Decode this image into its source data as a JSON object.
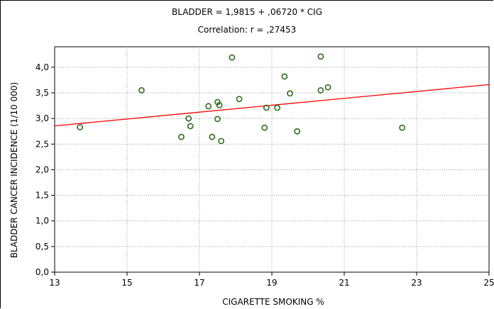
{
  "chart_data": {
    "type": "scatter",
    "title": "BLADDER = 1,9815 + ,06720 * CIG",
    "subtitle": "Correlation: r = ,27453",
    "xlabel": "CIGARETTE SMOKING %",
    "ylabel": "BLADDER CANCER INCIDENCE (1/10 000)",
    "xlim": [
      13,
      25
    ],
    "ylim": [
      0,
      4.4
    ],
    "x_ticks": [
      13,
      15,
      17,
      19,
      21,
      23,
      25
    ],
    "x_tick_labels": [
      "13",
      "15",
      "17",
      "19",
      "21",
      "23",
      "25"
    ],
    "y_ticks": [
      0,
      0.5,
      1,
      1.5,
      2,
      2.5,
      3,
      3.5,
      4
    ],
    "y_tick_labels": [
      "0,0",
      "0,5",
      "1,0",
      "1,5",
      "2,0",
      "2,5",
      "3,0",
      "3,5",
      "4,0"
    ],
    "grid": true,
    "regression": {
      "intercept": 1.9815,
      "slope": 0.0672
    },
    "colors": {
      "points": "#2e6b1a",
      "line": "#ff0000",
      "grid": "#9a9a9a"
    },
    "points": [
      {
        "x": 13.7,
        "y": 2.83
      },
      {
        "x": 15.4,
        "y": 3.55
      },
      {
        "x": 16.5,
        "y": 2.64
      },
      {
        "x": 16.7,
        "y": 3.0
      },
      {
        "x": 16.75,
        "y": 2.85
      },
      {
        "x": 17.25,
        "y": 3.24
      },
      {
        "x": 17.35,
        "y": 2.64
      },
      {
        "x": 17.5,
        "y": 3.32
      },
      {
        "x": 17.5,
        "y": 2.99
      },
      {
        "x": 17.55,
        "y": 3.26
      },
      {
        "x": 17.6,
        "y": 2.56
      },
      {
        "x": 17.9,
        "y": 4.19
      },
      {
        "x": 18.1,
        "y": 3.38
      },
      {
        "x": 18.8,
        "y": 2.82
      },
      {
        "x": 18.85,
        "y": 3.21
      },
      {
        "x": 19.15,
        "y": 3.21
      },
      {
        "x": 19.35,
        "y": 3.82
      },
      {
        "x": 19.5,
        "y": 3.49
      },
      {
        "x": 19.7,
        "y": 2.75
      },
      {
        "x": 20.35,
        "y": 4.21
      },
      {
        "x": 20.35,
        "y": 3.55
      },
      {
        "x": 20.55,
        "y": 3.61
      },
      {
        "x": 22.6,
        "y": 2.82
      }
    ]
  }
}
